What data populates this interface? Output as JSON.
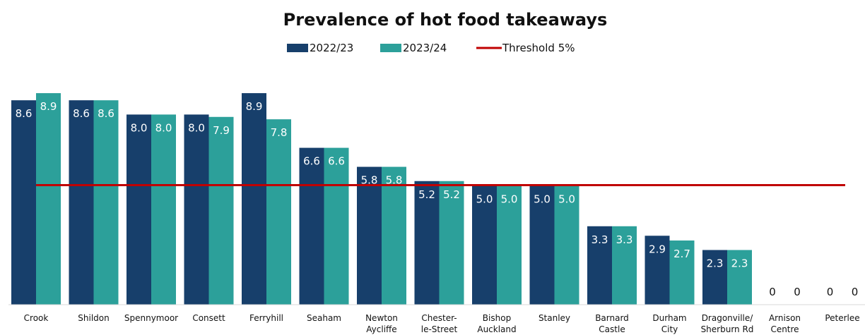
{
  "chart_data": {
    "type": "bar",
    "title": "Prevalence of hot food takeaways",
    "xlabel": "",
    "ylabel": "",
    "ylim": [
      0,
      9.5
    ],
    "categories": [
      [
        "Crook"
      ],
      [
        "Shildon"
      ],
      [
        "Spennymoor"
      ],
      [
        "Consett"
      ],
      [
        "Ferryhill"
      ],
      [
        "Seaham"
      ],
      [
        "Newton",
        "Aycliffe"
      ],
      [
        "Chester-",
        "le-Street"
      ],
      [
        "Bishop",
        "Auckland"
      ],
      [
        "Stanley"
      ],
      [
        "Barnard",
        "Castle"
      ],
      [
        "Durham",
        "City"
      ],
      [
        "Dragonville/",
        "Sherburn Rd"
      ],
      [
        "Arnison",
        "Centre"
      ],
      [
        "Peterlee"
      ]
    ],
    "series": [
      {
        "name": "2022/23",
        "color": "#173f6b",
        "values": [
          8.6,
          8.6,
          8.0,
          8.0,
          8.9,
          6.6,
          5.8,
          5.2,
          5.0,
          5.0,
          3.3,
          2.9,
          2.3,
          0,
          0
        ],
        "labels": [
          "8.6",
          "8.6",
          "8.0",
          "8.0",
          "8.9",
          "6.6",
          "5.8",
          "5.2",
          "5.0",
          "5.0",
          "3.3",
          "2.9",
          "2.3",
          "0",
          "0"
        ]
      },
      {
        "name": "2023/24",
        "color": "#2ca09a",
        "values": [
          8.9,
          8.6,
          8.0,
          7.9,
          7.8,
          6.6,
          5.8,
          5.2,
          5.0,
          5.0,
          3.3,
          2.7,
          2.3,
          0,
          0
        ],
        "labels": [
          "8.9",
          "8.6",
          "8.0",
          "7.9",
          "7.8",
          "6.6",
          "5.8",
          "5.2",
          "5.0",
          "5.0",
          "3.3",
          "2.7",
          "2.3",
          "0",
          "0"
        ]
      }
    ],
    "threshold": {
      "name": "Threshold 5%",
      "value": 5,
      "color": "#c00000"
    },
    "legend": {
      "placement": "top-center"
    },
    "grid": false
  }
}
